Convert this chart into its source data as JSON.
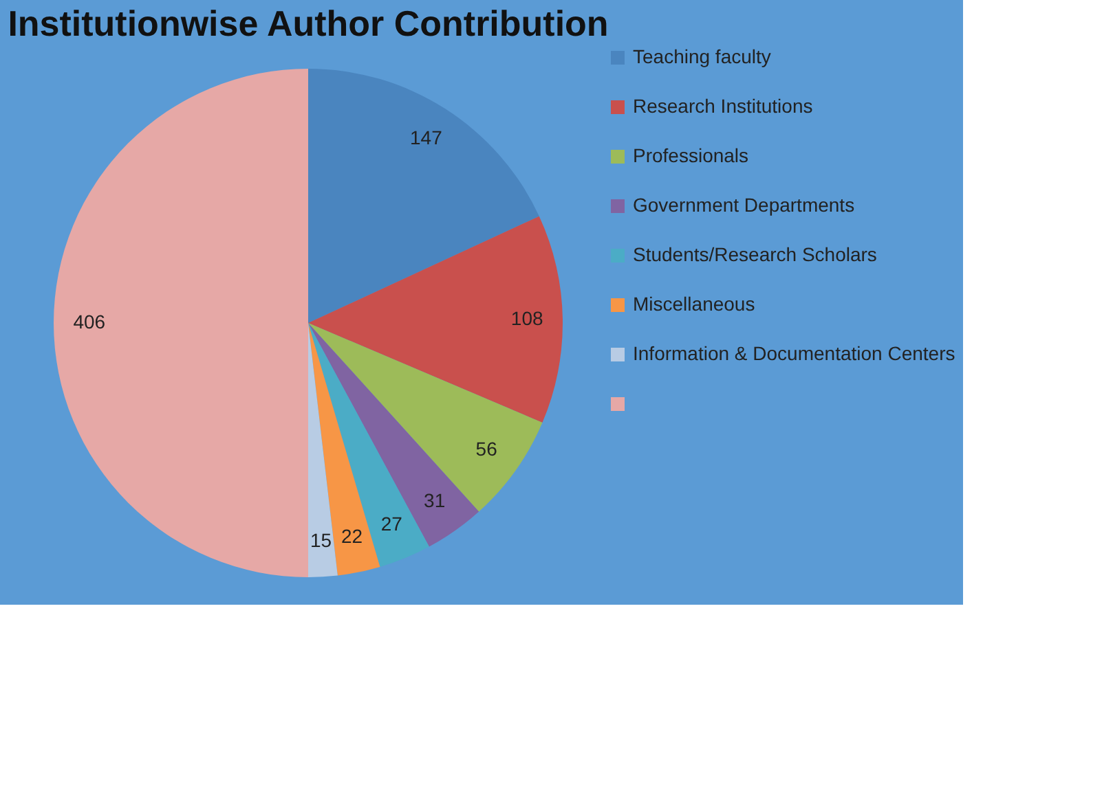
{
  "chart_data": {
    "type": "pie",
    "title": "Institutionwise Author Contribution",
    "categories": [
      "Teaching faculty",
      "Research Institutions",
      "Professionals",
      "Government Departments",
      "Students/Research Scholars",
      "Miscellaneous",
      "Information & Documentation Centers",
      null
    ],
    "values": [
      147,
      108,
      56,
      31,
      27,
      22,
      15,
      406
    ],
    "colors": [
      "#4a85bf",
      "#c9504d",
      "#9dbb59",
      "#8064a2",
      "#4bacc6",
      "#f79646",
      "#b8cce4",
      "#e6a8a6"
    ],
    "data_labels": true,
    "legend": "right"
  }
}
